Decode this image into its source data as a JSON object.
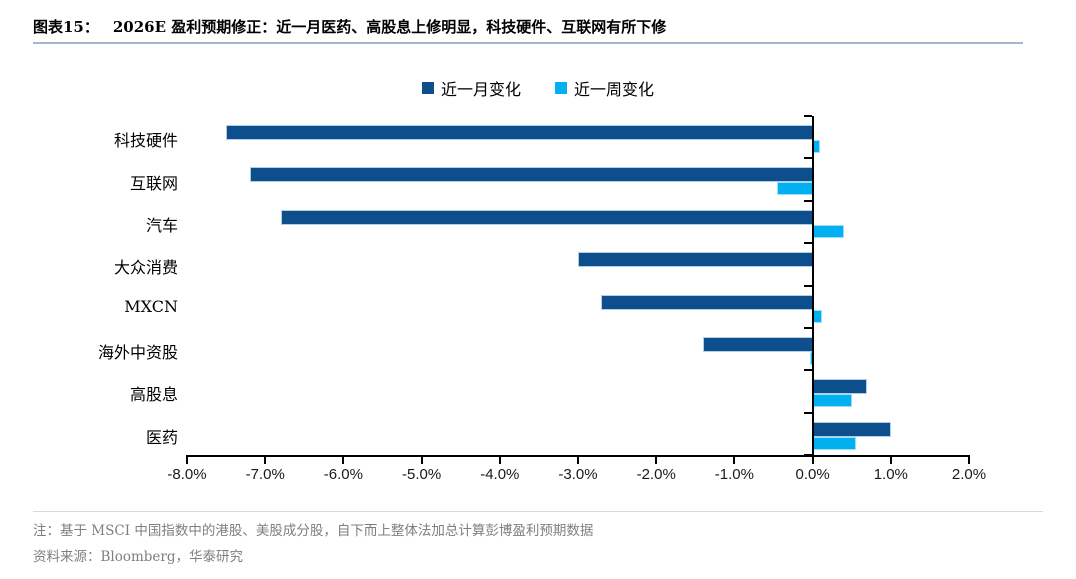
{
  "header": {
    "figure_label": "图表15：",
    "title": "2026E 盈利预期修正：近一月医药、高股息上修明显，科技硬件、互联网有所下修"
  },
  "legend": [
    {
      "label": "近一月变化",
      "color": "#0d4e8c"
    },
    {
      "label": "近一周变化",
      "color": "#00b0f0"
    }
  ],
  "chart_data": {
    "type": "bar",
    "orientation": "horizontal",
    "title": "2026E 盈利预期修正",
    "categories": [
      "科技硬件",
      "互联网",
      "汽车",
      "大众消费",
      "MXCN",
      "海外中资股",
      "高股息",
      "医药"
    ],
    "series": [
      {
        "name": "近一月变化",
        "color": "#0d4e8c",
        "values": [
          -7.5,
          -7.2,
          -6.8,
          -3.0,
          -2.7,
          -1.4,
          0.7,
          1.0
        ]
      },
      {
        "name": "近一周变化",
        "color": "#00b0f0",
        "values": [
          0.1,
          -0.45,
          0.4,
          0.0,
          0.12,
          -0.03,
          0.5,
          0.55
        ]
      }
    ],
    "value_axis": {
      "min": -8,
      "max": 2,
      "step": 1,
      "unit": "%",
      "tick_labels": [
        "-8.0%",
        "-7.0%",
        "-6.0%",
        "-5.0%",
        "-4.0%",
        "-3.0%",
        "-2.0%",
        "-1.0%",
        "0.0%",
        "1.0%",
        "2.0%"
      ]
    },
    "grid": false,
    "legend_position": "top-center"
  },
  "notes": {
    "note": "注：基于 MSCI 中国指数中的港股、美股成分股，自下而上整体法加总计算彭博盈利预期数据",
    "source": "资料来源：Bloomberg，华泰研究"
  },
  "colors": {
    "month_bar": "#0d4e8c",
    "week_bar": "#00b0f0",
    "title_rule": "#a3b6cc",
    "axis": "#000000",
    "note_text": "#7f7f7f",
    "divider": "#d9d9d9"
  }
}
